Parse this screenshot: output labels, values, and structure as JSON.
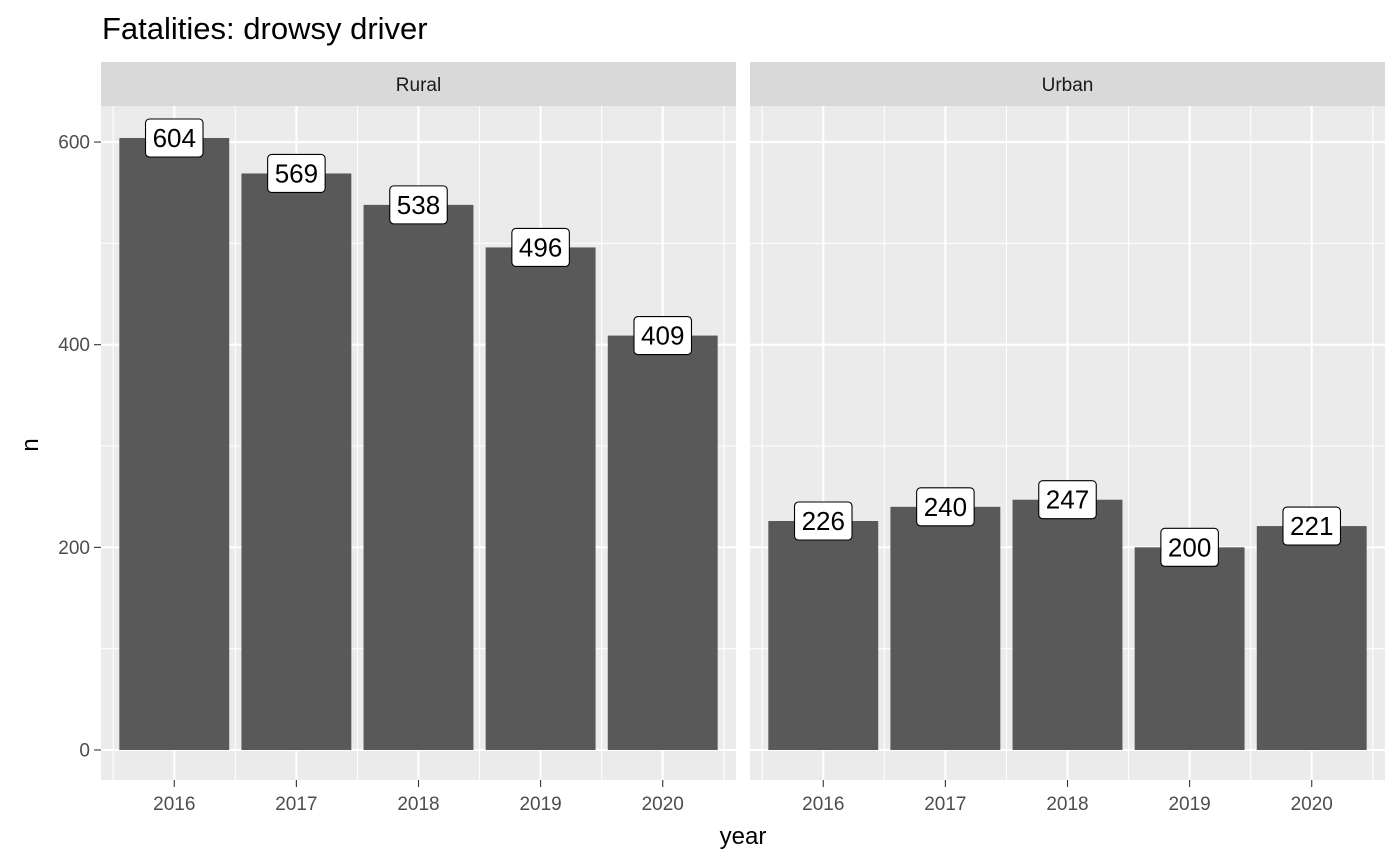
{
  "chart_data": {
    "type": "bar",
    "title": "Fatalities: drowsy driver",
    "xlabel": "year",
    "ylabel": "n",
    "ylim": [
      0,
      640
    ],
    "y_ticks": [
      0,
      200,
      400,
      600
    ],
    "categories": [
      "2016",
      "2017",
      "2018",
      "2019",
      "2020"
    ],
    "grid": true,
    "facets": [
      {
        "name": "Rural",
        "values": [
          604,
          569,
          538,
          496,
          409
        ]
      },
      {
        "name": "Urban",
        "values": [
          226,
          240,
          247,
          200,
          221
        ]
      }
    ]
  },
  "colors": {
    "bar": "#595959",
    "panel_background": "#ebebeb",
    "strip_background": "#d9d9d9",
    "gridlines": "#ffffff"
  }
}
